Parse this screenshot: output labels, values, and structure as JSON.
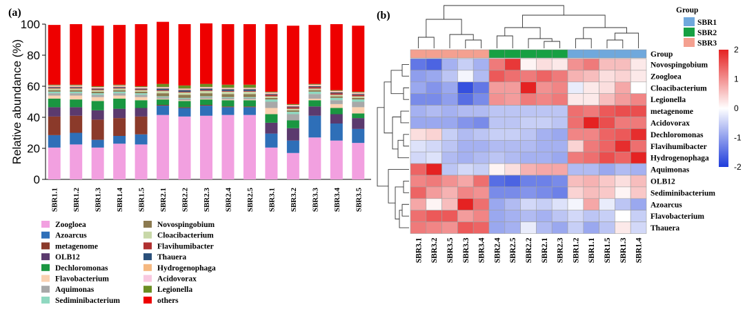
{
  "panel_a_label": "(a)",
  "panel_b_label": "(b)",
  "chart_data": [
    {
      "type": "bar",
      "stacked": true,
      "ylabel": "Relative abundance (%)",
      "ylim": [
        0,
        100
      ],
      "yticks": [
        "0",
        "20",
        "40",
        "60",
        "80",
        "100"
      ],
      "categories": [
        "SBR1.1",
        "SBR1.2",
        "SBR1.3",
        "SBR1.4",
        "SBR1.5",
        "SBR2.1",
        "SBR2.2",
        "SBR2.3",
        "SBR2.4",
        "SBR2.5",
        "SBR3.1",
        "SBR3.2",
        "SBR3.3",
        "SBR3.4",
        "SBR3.5"
      ],
      "series": [
        {
          "name": "Zoogloea",
          "color": "#f2a0e0",
          "values": [
            20.5,
            22.5,
            20.5,
            23,
            22.5,
            41.5,
            40.5,
            41,
            41.5,
            41.5,
            20.5,
            17,
            27,
            25,
            23.5
          ]
        },
        {
          "name": "Azoarcus",
          "color": "#2e6fb8",
          "values": [
            8,
            7.5,
            5,
            5,
            6.5,
            6,
            5.5,
            6.5,
            5,
            5,
            9,
            8,
            14,
            11,
            9
          ]
        },
        {
          "name": "metagenome",
          "color": "#8b3a2a",
          "values": [
            12,
            11,
            13,
            11.5,
            11.5,
            0.5,
            0.5,
            0.5,
            0.5,
            0.5,
            0,
            0,
            0,
            0,
            0
          ]
        },
        {
          "name": "OLB12",
          "color": "#5b3a6e",
          "values": [
            6,
            5.5,
            6,
            6,
            5.5,
            0,
            0,
            0,
            0,
            0,
            7,
            8,
            6,
            6,
            7
          ]
        },
        {
          "name": "Dechloromonas",
          "color": "#1a9641",
          "values": [
            5.5,
            5,
            6,
            6.5,
            5,
            3.5,
            4,
            3.5,
            4,
            4,
            5.5,
            5,
            4,
            4,
            3
          ]
        },
        {
          "name": "Flavobacterium",
          "color": "#f9d0b0",
          "values": [
            2,
            2.5,
            2.5,
            2,
            2,
            0.5,
            0.5,
            0.5,
            0.5,
            0.5,
            4,
            0,
            1,
            2.5,
            4
          ]
        },
        {
          "name": "Aquimonas",
          "color": "#a8a8a8",
          "values": [
            1.5,
            1.5,
            1.5,
            1.5,
            1.5,
            1,
            1,
            1,
            1,
            1,
            4,
            4,
            3,
            2.5,
            3.5
          ]
        },
        {
          "name": "Sediminibacterium",
          "color": "#8fd8c0",
          "values": [
            1,
            1,
            1,
            1,
            1,
            0.5,
            0.5,
            0.5,
            0.5,
            0.5,
            1.5,
            1.5,
            1.5,
            1.5,
            1.5
          ]
        },
        {
          "name": "Novospingobium",
          "color": "#8c7a50",
          "values": [
            1,
            1,
            1,
            1,
            1,
            2,
            2,
            2,
            2,
            2,
            1,
            1,
            1,
            1,
            1
          ]
        },
        {
          "name": "Cloacibacterium",
          "color": "#c8d8a8",
          "values": [
            1,
            1,
            1,
            1,
            1,
            1.5,
            1.5,
            1.5,
            1.5,
            1.5,
            1,
            1,
            1,
            1,
            1
          ]
        },
        {
          "name": "Flavihumibacter",
          "color": "#b03030",
          "values": [
            0.5,
            0.5,
            0.5,
            0.5,
            0.5,
            0.5,
            0.5,
            0.5,
            0.5,
            0.5,
            1,
            1,
            1,
            1,
            1
          ]
        },
        {
          "name": "Thauera",
          "color": "#2a4f7a",
          "values": [
            0.5,
            0.5,
            0.5,
            0.5,
            0.5,
            1,
            1,
            1,
            1,
            1,
            0.5,
            0.5,
            0.5,
            0.5,
            0.5
          ]
        },
        {
          "name": "Hydrogenophaga",
          "color": "#f5b880",
          "values": [
            0.5,
            0.5,
            0.5,
            0.5,
            0.5,
            0.5,
            0.5,
            0.5,
            0.5,
            0.5,
            0.5,
            0.5,
            0.5,
            0.5,
            0.5
          ]
        },
        {
          "name": "Acidovorax",
          "color": "#f8c8e0",
          "values": [
            0.5,
            0.5,
            0.5,
            0.5,
            0.5,
            0.5,
            0.5,
            0.5,
            0.5,
            0.5,
            0.5,
            0.5,
            0.5,
            0.5,
            0.5
          ]
        },
        {
          "name": "Legionella",
          "color": "#6b8e23",
          "values": [
            0.5,
            0.5,
            0.5,
            0.5,
            0.5,
            2,
            2,
            2,
            2,
            2,
            0.5,
            0.5,
            0.5,
            0.5,
            0.5
          ]
        },
        {
          "name": "others",
          "color": "#ee0000",
          "values": [
            38.5,
            39,
            39,
            38.5,
            40,
            40,
            39.5,
            39,
            39,
            39,
            43.5,
            50.5,
            38,
            42.5,
            42.5
          ]
        }
      ]
    },
    {
      "type": "heatmap",
      "columns": [
        "SBR3.1",
        "SBR3.2",
        "SBR3.5",
        "SBR3.3",
        "SBR3.4",
        "SBR2.4",
        "SBR2.5",
        "SBR2.2",
        "SBR2.1",
        "SBR2.3",
        "SBR1.2",
        "SBR1.1",
        "SBR1.5",
        "SBR1.3",
        "SBR1.4"
      ],
      "column_groups": [
        "SBR3",
        "SBR3",
        "SBR3",
        "SBR3",
        "SBR3",
        "SBR2",
        "SBR2",
        "SBR2",
        "SBR2",
        "SBR2",
        "SBR1",
        "SBR1",
        "SBR1",
        "SBR1",
        "SBR1"
      ],
      "rows": [
        "Novospingobium",
        "Zoogloea",
        "Cloacibacterium",
        "Legionella",
        "metagenome",
        "Acidovorax",
        "Dechloromonas",
        "Flavihumibacter",
        "Hydrogenophaga",
        "Aquimonas",
        "OLB12",
        "Sediminibacterium",
        "Azoarcus",
        "Flavobacterium",
        "Thauera"
      ],
      "values": [
        [
          -1.4,
          -1.6,
          -0.8,
          -0.5,
          -0.8,
          1.2,
          1.8,
          0.1,
          0.3,
          0.2,
          1.0,
          1.2,
          0.6,
          0.6,
          0.2
        ],
        [
          -1.0,
          -0.9,
          -0.6,
          -0.1,
          -0.7,
          1.5,
          1.3,
          1.2,
          1.4,
          1.2,
          0.7,
          0.6,
          0.3,
          0.4,
          0.2
        ],
        [
          -0.9,
          -1.1,
          -0.9,
          -1.8,
          -1.4,
          0.9,
          0.9,
          2.0,
          1.0,
          1.1,
          -0.2,
          0.2,
          0.3,
          0.8,
          0.0
        ],
        [
          -1.2,
          -1.2,
          -1.0,
          -1.5,
          -1.2,
          1.0,
          0.9,
          1.2,
          1.1,
          1.2,
          0.2,
          0.2,
          0.6,
          0.9,
          1.1
        ],
        [
          -0.8,
          -0.7,
          -0.8,
          -0.7,
          -0.7,
          -0.6,
          -0.6,
          -0.6,
          -0.6,
          -0.6,
          1.3,
          1.2,
          1.5,
          1.6,
          1.6
        ],
        [
          -0.9,
          -0.9,
          -0.9,
          -1.1,
          -1.2,
          -0.6,
          -0.6,
          -0.5,
          -0.5,
          -0.6,
          1.3,
          2.0,
          1.6,
          1.2,
          1.2
        ],
        [
          0.3,
          0.4,
          -0.5,
          -0.7,
          -0.6,
          -0.5,
          -0.5,
          -0.6,
          -0.8,
          -0.9,
          1.1,
          1.1,
          1.4,
          1.5,
          1.9
        ],
        [
          -0.3,
          -0.4,
          -0.6,
          -0.8,
          -0.8,
          -0.7,
          -0.7,
          -0.7,
          -0.8,
          -0.8,
          0.4,
          1.2,
          1.4,
          1.9,
          1.3
        ],
        [
          -0.4,
          -0.3,
          -0.7,
          -0.8,
          -0.7,
          -0.6,
          -0.7,
          -0.8,
          -0.8,
          -0.9,
          1.2,
          1.3,
          1.6,
          1.4,
          2.3
        ],
        [
          1.4,
          2.2,
          -0.6,
          -0.4,
          -0.5,
          0.1,
          0.3,
          0.7,
          0.8,
          0.8,
          -0.7,
          -0.7,
          -0.9,
          -0.7,
          -0.8
        ],
        [
          1.1,
          1.2,
          1.0,
          0.8,
          1.3,
          -1.5,
          -1.6,
          -1.3,
          -1.3,
          -1.2,
          0.6,
          0.7,
          0.5,
          0.3,
          0.6
        ],
        [
          1.4,
          0.9,
          0.7,
          1.1,
          1.0,
          -1.2,
          -1.2,
          -1.1,
          -1.2,
          -1.3,
          0.4,
          0.6,
          0.5,
          0.1,
          0.5
        ],
        [
          0.8,
          0.1,
          0.6,
          2.4,
          1.3,
          -0.9,
          -0.7,
          -0.4,
          -0.5,
          -0.3,
          -0.1,
          0.8,
          -0.2,
          -0.6,
          -0.9
        ],
        [
          1.3,
          1.5,
          1.5,
          0.9,
          1.1,
          -0.9,
          -0.8,
          -0.7,
          -0.8,
          -0.6,
          -0.4,
          -0.6,
          -0.5,
          0.0,
          -0.5
        ],
        [
          1.2,
          1.1,
          1.0,
          1.5,
          1.4,
          -0.9,
          -0.8,
          -0.2,
          -0.7,
          -0.9,
          -0.5,
          -0.9,
          -0.6,
          0.2,
          -0.4
        ]
      ],
      "color_scale": {
        "min": -2,
        "max": 2,
        "ticks": [
          "2",
          "1",
          "0",
          "-1",
          "-2"
        ],
        "low": "#1f3ddb",
        "mid": "#ffffff",
        "high": "#e52222"
      },
      "group_legend": {
        "title": "Group",
        "items": [
          {
            "name": "SBR1",
            "color": "#6fa8dc"
          },
          {
            "name": "SBR2",
            "color": "#16a043"
          },
          {
            "name": "SBR3",
            "color": "#f4a090"
          }
        ]
      },
      "group_row_label": "Group"
    }
  ]
}
